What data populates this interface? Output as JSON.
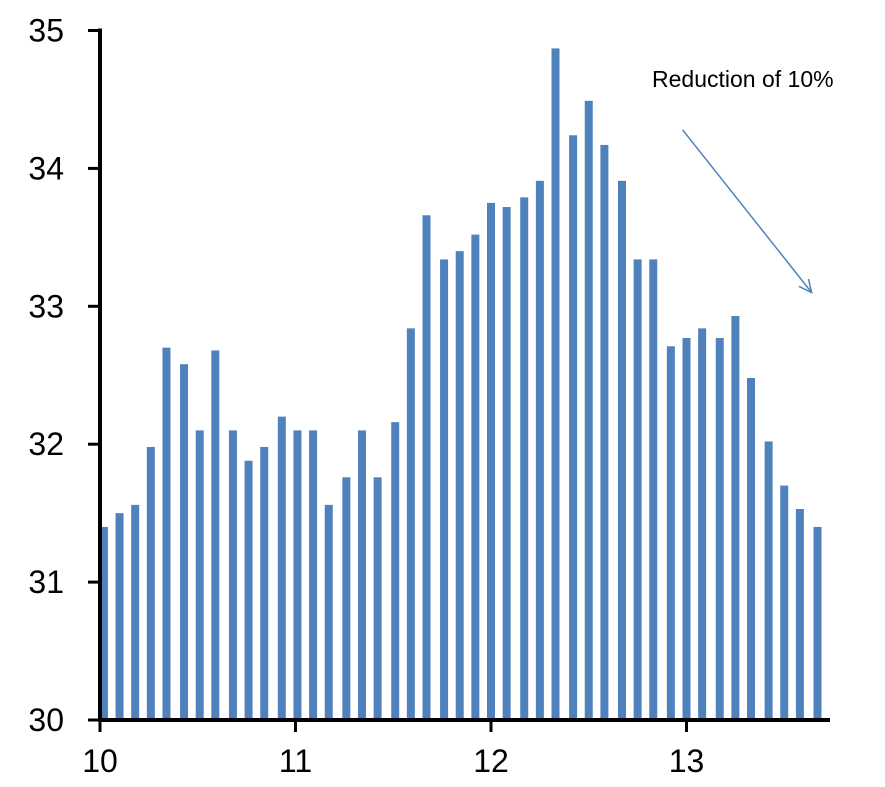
{
  "chart_data": {
    "type": "bar",
    "title": "",
    "xlabel": "",
    "ylabel": "",
    "xlim": [
      10,
      13.75
    ],
    "ylim": [
      30,
      35
    ],
    "x_ticks": [
      10,
      11,
      12,
      13
    ],
    "y_ticks": [
      30,
      31,
      32,
      33,
      34,
      35
    ],
    "grid": false,
    "legend": "none",
    "bar_color": "#4F81BD",
    "axis_color": "#000000",
    "annotation": {
      "text": "Reduction of 10%",
      "arrow_color": "#4F81BD",
      "arrow_from": {
        "x": 12.98,
        "y": 34.28
      },
      "arrow_to": {
        "x": 13.64,
        "y": 33.1
      }
    },
    "series": [
      {
        "x": [
          10.02,
          10.1,
          10.18,
          10.26,
          10.34,
          10.43,
          10.51,
          10.59,
          10.68,
          10.76,
          10.84,
          10.93,
          11.01,
          11.09,
          11.17,
          11.26,
          11.34,
          11.42,
          11.51,
          11.59,
          11.67,
          11.76,
          11.84,
          11.92,
          12.0,
          12.08,
          12.17,
          12.25,
          12.33,
          12.42,
          12.5,
          12.58,
          12.67,
          12.75,
          12.83,
          12.92,
          13.0,
          13.08,
          13.17,
          13.25,
          13.33,
          13.42,
          13.5,
          13.58,
          13.67
        ],
        "values": [
          31.4,
          31.5,
          31.56,
          31.98,
          32.7,
          32.58,
          32.1,
          32.68,
          32.1,
          31.88,
          31.98,
          32.2,
          32.1,
          32.1,
          31.56,
          31.76,
          32.1,
          31.76,
          32.16,
          32.84,
          33.66,
          33.34,
          33.4,
          33.52,
          33.75,
          33.72,
          33.79,
          33.91,
          34.87,
          34.24,
          34.49,
          34.17,
          33.91,
          33.34,
          33.34,
          32.71,
          32.77,
          32.84,
          32.77,
          32.93,
          32.48,
          32.02,
          31.7,
          31.53,
          31.4
        ]
      }
    ]
  }
}
